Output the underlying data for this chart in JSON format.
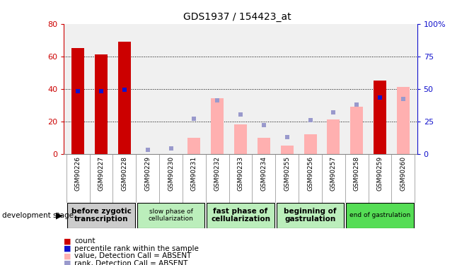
{
  "title": "GDS1937 / 154423_at",
  "samples": [
    "GSM90226",
    "GSM90227",
    "GSM90228",
    "GSM90229",
    "GSM90230",
    "GSM90231",
    "GSM90232",
    "GSM90233",
    "GSM90234",
    "GSM90255",
    "GSM90256",
    "GSM90257",
    "GSM90258",
    "GSM90259",
    "GSM90260"
  ],
  "count_values": [
    65,
    61,
    69,
    0,
    0,
    0,
    0,
    0,
    0,
    0,
    0,
    0,
    0,
    45,
    0
  ],
  "rank_values": [
    48,
    48,
    49,
    0,
    0,
    0,
    0,
    0,
    0,
    0,
    0,
    0,
    0,
    43,
    0
  ],
  "absent_value_bars": [
    0,
    0,
    0,
    0,
    0,
    10,
    34,
    18,
    10,
    5,
    12,
    21,
    29,
    0,
    41
  ],
  "absent_rank_dots": [
    0,
    0,
    0,
    3,
    4,
    27,
    41,
    30,
    22,
    13,
    26,
    32,
    38,
    0,
    42
  ],
  "ylim_left": [
    0,
    80
  ],
  "ylim_right": [
    0,
    100
  ],
  "yticks_left": [
    0,
    20,
    40,
    60,
    80
  ],
  "yticks_right": [
    0,
    25,
    50,
    75,
    100
  ],
  "bar_color_count": "#cc0000",
  "bar_color_rank": "#1111cc",
  "bar_color_absent_value": "#ffb0b0",
  "dot_color_absent_rank": "#9999cc",
  "bg_plot": "#f0f0f0",
  "left_axis_color": "#cc0000",
  "right_axis_color": "#1111cc",
  "stages_def": [
    [
      0,
      2,
      "before zygotic\ntranscription",
      "#cccccc",
      7.5,
      true
    ],
    [
      3,
      5,
      "slow phase of\ncellularization",
      "#bbeebb",
      6.5,
      false
    ],
    [
      6,
      8,
      "fast phase of\ncellularization",
      "#bbeebb",
      7.5,
      true
    ],
    [
      9,
      11,
      "beginning of\ngastrulation",
      "#bbeebb",
      7.5,
      true
    ],
    [
      12,
      14,
      "end of gastrulation",
      "#55dd55",
      6.5,
      false
    ]
  ],
  "legend_items": [
    [
      "#cc0000",
      "count"
    ],
    [
      "#1111cc",
      "percentile rank within the sample"
    ],
    [
      "#ffb0b0",
      "value, Detection Call = ABSENT"
    ],
    [
      "#9999cc",
      "rank, Detection Call = ABSENT"
    ]
  ]
}
